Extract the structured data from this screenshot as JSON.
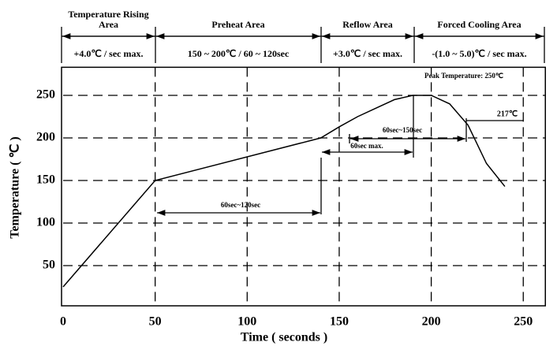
{
  "chart_data": {
    "type": "line",
    "x_label": "Time ( seconds )",
    "y_label": "Temperature ( ℃ )",
    "xlim": [
      0,
      262
    ],
    "ylim": [
      0,
      283
    ],
    "xticks": [
      0,
      50,
      100,
      150,
      200,
      250
    ],
    "yticks": [
      50,
      100,
      150,
      200,
      250
    ],
    "grid": true,
    "series": [
      {
        "color": "#000000",
        "x": [
          0,
          50,
          140,
          150,
          160,
          170,
          180,
          190,
          200,
          210,
          220,
          230,
          240
        ],
        "values": [
          25,
          150,
          200,
          213,
          225,
          235,
          245,
          250,
          250,
          240,
          215,
          170,
          143
        ]
      }
    ],
    "zones": [
      {
        "name": "Temperature Rising Area",
        "spec": "+4.0℃ / sec max."
      },
      {
        "name": "Preheat Area",
        "spec": "150 ~ 200℃ / 60 ~ 120sec"
      },
      {
        "name": "Reflow Area",
        "spec": "+3.0℃ / sec max."
      },
      {
        "name": "Forced Cooling Area",
        "spec": "-(1.0 ~ 5.0)℃ / sec max."
      }
    ],
    "annotations": {
      "peak": "Peak Temperature: 250℃",
      "liquidus": "217℃",
      "above_217": "60sec~150sec",
      "peak_time": "60sec max.",
      "preheat_time": "60sec~120sec"
    }
  }
}
